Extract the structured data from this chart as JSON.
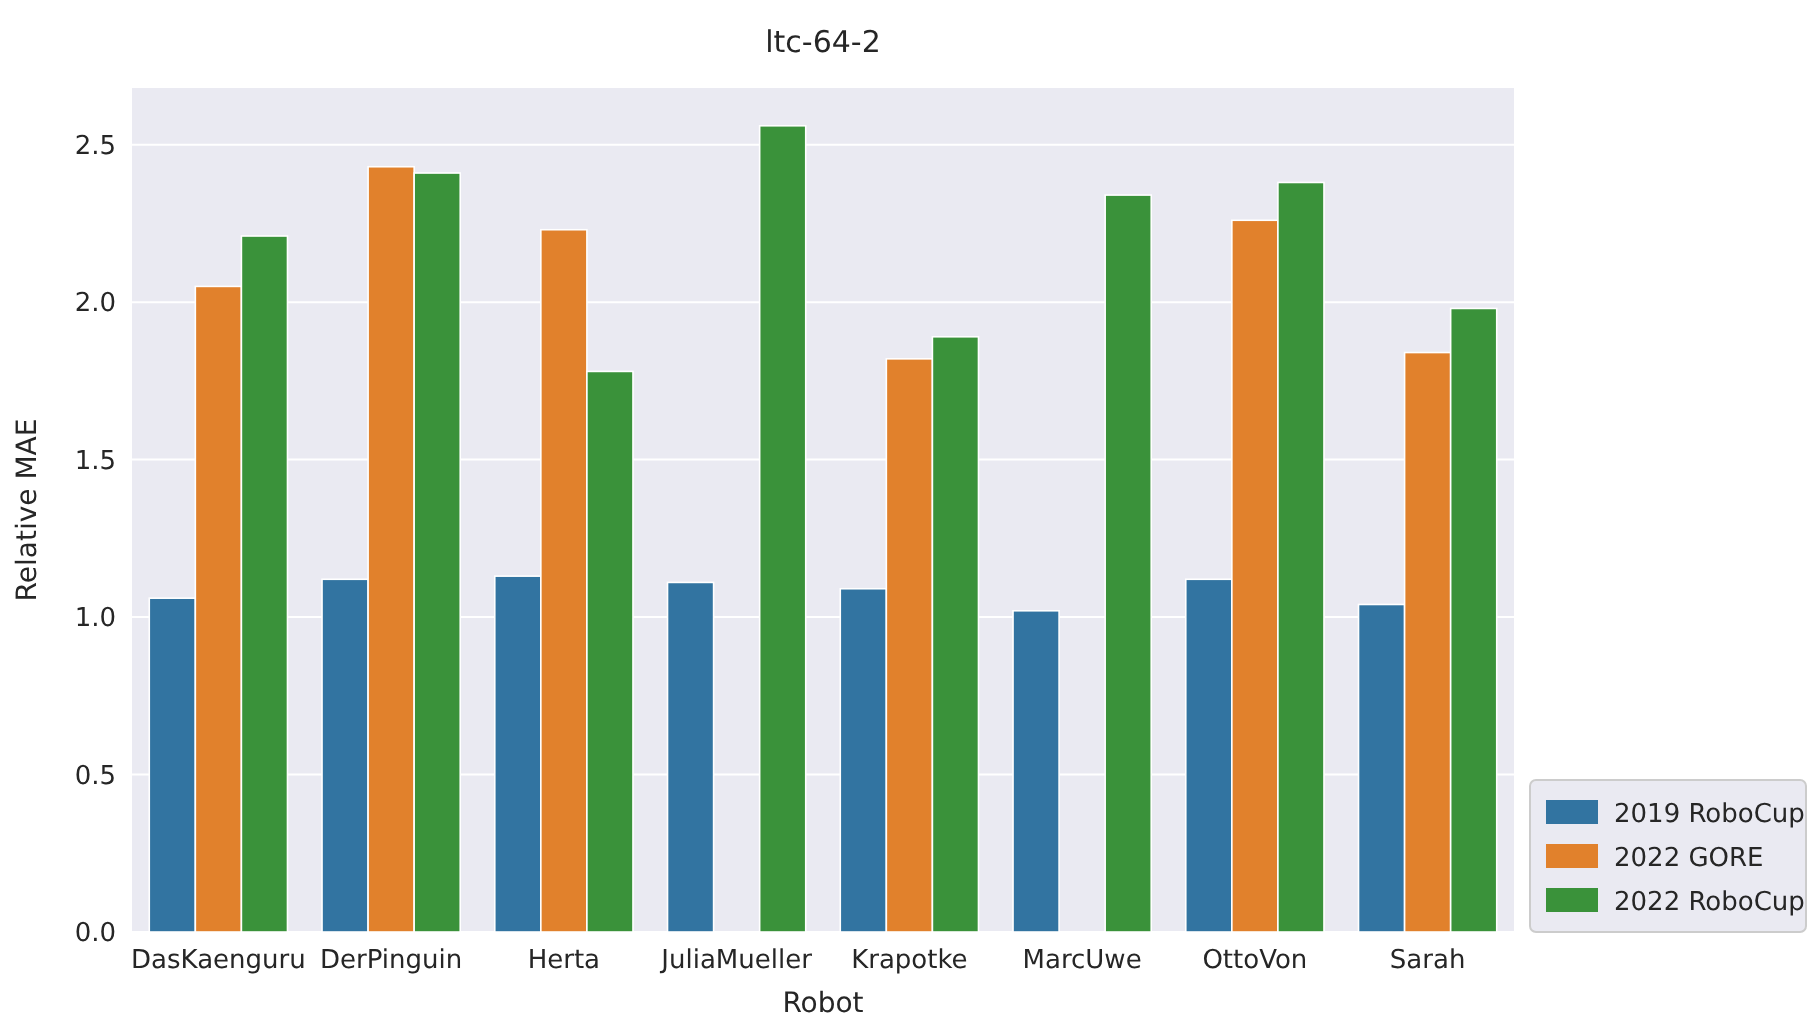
{
  "chart_data": {
    "type": "bar",
    "title": "ltc-64-2",
    "xlabel": "Robot",
    "ylabel": "Relative MAE",
    "categories": [
      "DasKaenguru",
      "DerPinguin",
      "Herta",
      "JuliaMueller",
      "Krapotke",
      "MarcUwe",
      "OttoVon",
      "Sarah"
    ],
    "series": [
      {
        "name": "2019 RoboCup",
        "color": "#3274a1",
        "values": [
          1.06,
          1.12,
          1.13,
          1.11,
          1.09,
          1.02,
          1.12,
          1.04
        ]
      },
      {
        "name": "2022 GORE",
        "color": "#e1812c",
        "values": [
          2.05,
          2.43,
          2.23,
          null,
          1.82,
          null,
          2.26,
          1.84
        ]
      },
      {
        "name": "2022 RoboCup",
        "color": "#3a923a",
        "values": [
          2.21,
          2.41,
          1.78,
          2.56,
          1.89,
          2.34,
          2.38,
          1.98
        ]
      }
    ],
    "ylim": [
      0,
      2.68
    ],
    "yticks": [
      {
        "value": 0,
        "label": "0.0"
      },
      {
        "value": 0.5,
        "label": "0.5"
      },
      {
        "value": 1,
        "label": "1.0"
      },
      {
        "value": 1.5,
        "label": "1.5"
      },
      {
        "value": 2,
        "label": "2.0"
      },
      {
        "value": 2.5,
        "label": "2.5"
      }
    ],
    "grid": "y",
    "legend": "bottom right"
  }
}
